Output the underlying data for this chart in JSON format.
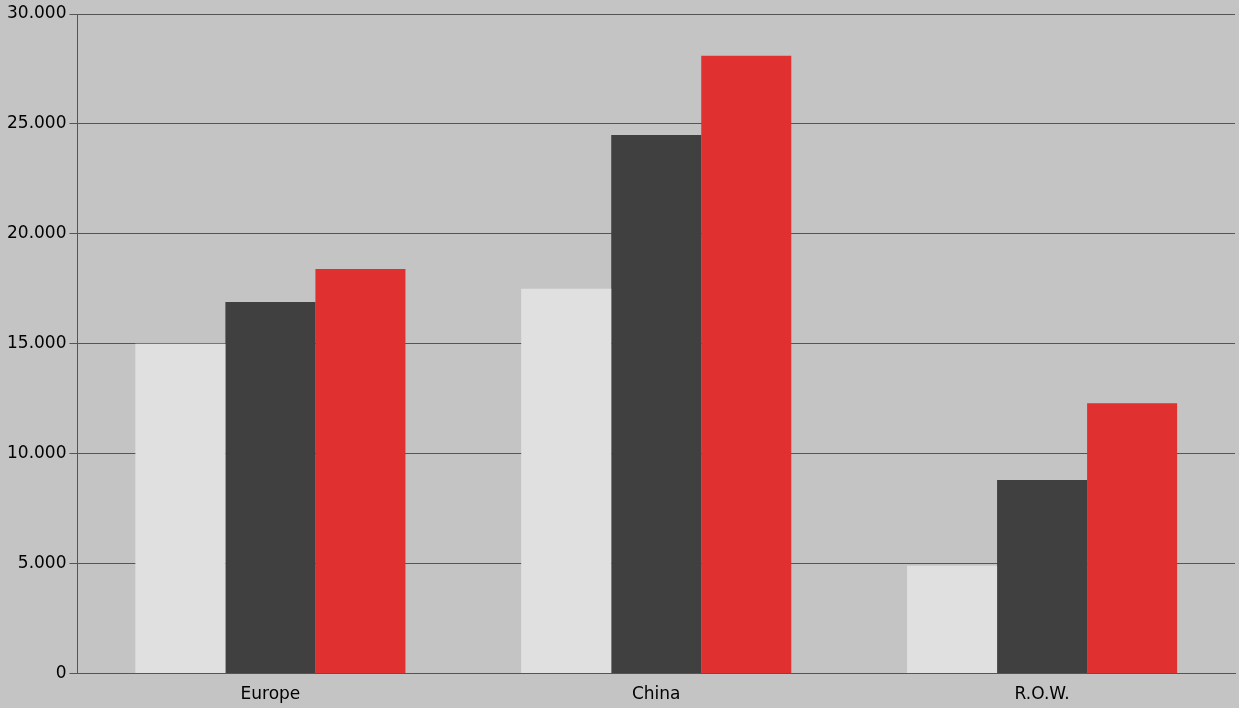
{
  "chart_data": {
    "type": "bar",
    "categories": [
      "Europe",
      "China",
      "R.O.W."
    ],
    "series": [
      {
        "color": "#e0e0e0",
        "values": [
          15000,
          17500,
          4900
        ]
      },
      {
        "color": "#404040",
        "values": [
          16900,
          24500,
          8800
        ]
      },
      {
        "color": "#e03030",
        "values": [
          18400,
          28100,
          12300
        ]
      }
    ],
    "ylim": [
      0,
      30000
    ],
    "yticks": [
      {
        "value": 0,
        "label": "0"
      },
      {
        "value": 5000,
        "label": "5.000"
      },
      {
        "value": 10000,
        "label": "10.000"
      },
      {
        "value": 15000,
        "label": "15.000"
      },
      {
        "value": 20000,
        "label": "20.000"
      },
      {
        "value": 25000,
        "label": "25.000"
      },
      {
        "value": 30000,
        "label": "30.000"
      }
    ],
    "grid": "y",
    "legend": false
  }
}
